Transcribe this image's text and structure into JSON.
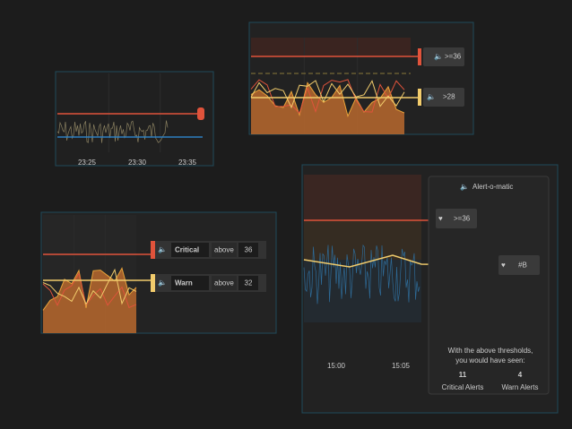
{
  "panels": [
    {
      "x_labels": [
        "23:25",
        "23:30",
        "23:35"
      ]
    },
    {
      "thresholds": [
        ">=36",
        ">28"
      ]
    },
    {
      "thresholds": [
        {
          "level": "Critical",
          "op": "above",
          "value": 36
        },
        {
          "level": "Warn",
          "op": "above",
          "value": 32
        }
      ]
    },
    {
      "title": "Alert-o-matic",
      "thresholds": [
        ">=36",
        "#B"
      ],
      "x_labels": [
        "15:00",
        "15:05"
      ],
      "summary": [
        "With the above thresholds,",
        "you would have seen:"
      ],
      "counts": [
        {
          "value": 11,
          "label": "Critical Alerts"
        },
        {
          "value": 4,
          "label": "Warn Alerts"
        }
      ]
    }
  ]
}
